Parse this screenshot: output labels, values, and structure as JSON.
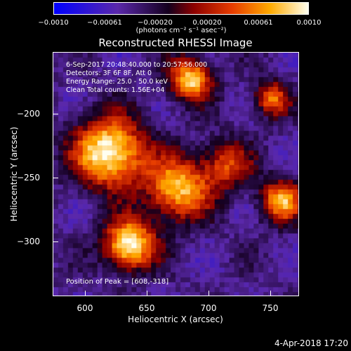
{
  "colorbar": {
    "ticks": [
      "−0.0010",
      "−0.00061",
      "−0.00020",
      "0.00020",
      "0.00061",
      "0.0010"
    ],
    "units": "(photons cm⁻² s⁻¹ asec⁻²)",
    "range": [
      -0.001,
      0.001
    ]
  },
  "title": "Reconstructed RHESSI Image",
  "info": {
    "time": "6-Sep-2017 20:48:40.000 to 20:57:56.000",
    "detectors": "Detectors: 3F 6F 8F, Att 0",
    "energy": "Energy Range: 25.0 - 50.0 keV",
    "clean": "Clean    Total counts: 1.56E+04"
  },
  "peak": "Position of Peak = [608,-318]",
  "axes": {
    "xlabel": "Heliocentric X (arcsec)",
    "ylabel": "Heliocentric Y (arcsec)",
    "xticks": [
      "600",
      "650",
      "700",
      "750"
    ],
    "yticks": [
      "−200",
      "−250",
      "−300"
    ],
    "xrange": [
      576,
      768
    ],
    "yrange": [
      -350,
      -160
    ]
  },
  "footer": {
    "date": "4-Apr-2018 17:20"
  }
}
